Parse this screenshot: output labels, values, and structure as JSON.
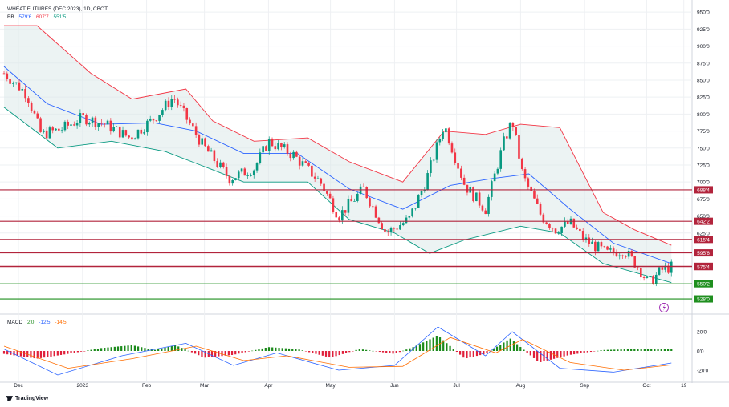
{
  "header": {
    "symbol_line": "WHEAT FUTURES (DEC 2023), 1D, CBOT",
    "bb_label": "BB",
    "bb_values": [
      "579'6",
      "607'7",
      "551'5"
    ],
    "macd_label": "MACD",
    "macd_values": [
      "2'0",
      "-12'5",
      "-14'5"
    ]
  },
  "footer": {
    "brand": "TradingView"
  },
  "colors": {
    "up": "#089981",
    "down": "#f23645",
    "bb_mid": "#2962ff",
    "bb_upper": "#f23645",
    "bb_lower": "#089981",
    "bb_fill": "#dce9e9",
    "hline_red": "#b2243c",
    "hline_green": "#1f8f1f",
    "macd_line": "#2962ff",
    "signal_line": "#ff6d00",
    "hist_pos": "#1b8a1b",
    "hist_neg": "#e0203b",
    "grid": "#eef0f3",
    "axis_text": "#131722",
    "badge_text": "#ffffff",
    "flash_icon": "#9c27b0"
  },
  "chart_data": [
    {
      "type": "line",
      "title": "WHEAT FUTURES (DEC 2023), 1D, CBOT",
      "subtype": "candlestick",
      "ylim": [
        508,
        962
      ],
      "y_ticks": [
        "950'0",
        "925'0",
        "900'0",
        "875'0",
        "850'0",
        "825'0",
        "800'0",
        "775'0",
        "750'0",
        "725'0",
        "700'0",
        "675'0",
        "650'0",
        "625'0"
      ],
      "y_tick_values": [
        950,
        925,
        900,
        875,
        850,
        825,
        800,
        775,
        750,
        725,
        700,
        675,
        650,
        625
      ],
      "x_labels": [
        "Dec",
        "2023",
        "Feb",
        "Mar",
        "Apr",
        "May",
        "Jun",
        "Jul",
        "Aug",
        "Sep",
        "Oct",
        "19"
      ],
      "x_label_dates": [
        "2022-12-01",
        "2023-01-01",
        "2023-02-01",
        "2023-03-01",
        "2023-04-01",
        "2023-05-01",
        "2023-06-01",
        "2023-07-01",
        "2023-08-01",
        "2023-09-01",
        "2023-10-01",
        "2023-10-19"
      ],
      "x_range": [
        "2022-11-24",
        "2023-10-23"
      ],
      "price_series": [
        {
          "date": "2022-11-24",
          "value": 860
        },
        {
          "date": "2022-12-05",
          "value": 830
        },
        {
          "date": "2022-12-12",
          "value": 770
        },
        {
          "date": "2022-12-22",
          "value": 778
        },
        {
          "date": "2023-01-01",
          "value": 795
        },
        {
          "date": "2023-01-12",
          "value": 785
        },
        {
          "date": "2023-01-24",
          "value": 765
        },
        {
          "date": "2023-02-05",
          "value": 795
        },
        {
          "date": "2023-02-14",
          "value": 825
        },
        {
          "date": "2023-02-28",
          "value": 755
        },
        {
          "date": "2023-03-13",
          "value": 705
        },
        {
          "date": "2023-03-25",
          "value": 720
        },
        {
          "date": "2023-04-01",
          "value": 760
        },
        {
          "date": "2023-04-13",
          "value": 740
        },
        {
          "date": "2023-04-26",
          "value": 700
        },
        {
          "date": "2023-05-05",
          "value": 650
        },
        {
          "date": "2023-05-17",
          "value": 690
        },
        {
          "date": "2023-05-28",
          "value": 625
        },
        {
          "date": "2023-06-08",
          "value": 645
        },
        {
          "date": "2023-06-16",
          "value": 700
        },
        {
          "date": "2023-06-25",
          "value": 785
        },
        {
          "date": "2023-07-05",
          "value": 695
        },
        {
          "date": "2023-07-15",
          "value": 660
        },
        {
          "date": "2023-07-24",
          "value": 760
        },
        {
          "date": "2023-07-28",
          "value": 790
        },
        {
          "date": "2023-08-02",
          "value": 710
        },
        {
          "date": "2023-08-11",
          "value": 650
        },
        {
          "date": "2023-08-18",
          "value": 630
        },
        {
          "date": "2023-08-25",
          "value": 640
        },
        {
          "date": "2023-09-01",
          "value": 615
        },
        {
          "date": "2023-09-12",
          "value": 595
        },
        {
          "date": "2023-09-20",
          "value": 600
        },
        {
          "date": "2023-09-27",
          "value": 575
        },
        {
          "date": "2023-10-02",
          "value": 550
        },
        {
          "date": "2023-10-08",
          "value": 570
        },
        {
          "date": "2023-10-13",
          "value": 575
        }
      ],
      "series": [
        {
          "name": "BB basis",
          "values": [
            {
              "date": "2022-11-24",
              "value": 870
            },
            {
              "date": "2022-12-15",
              "value": 815
            },
            {
              "date": "2023-01-10",
              "value": 785
            },
            {
              "date": "2023-02-05",
              "value": 787
            },
            {
              "date": "2023-02-25",
              "value": 775
            },
            {
              "date": "2023-03-20",
              "value": 742
            },
            {
              "date": "2023-04-15",
              "value": 742
            },
            {
              "date": "2023-05-10",
              "value": 690
            },
            {
              "date": "2023-06-05",
              "value": 660
            },
            {
              "date": "2023-06-28",
              "value": 695
            },
            {
              "date": "2023-07-18",
              "value": 705
            },
            {
              "date": "2023-08-05",
              "value": 712
            },
            {
              "date": "2023-08-25",
              "value": 660
            },
            {
              "date": "2023-09-15",
              "value": 610
            },
            {
              "date": "2023-10-13",
              "value": 580
            }
          ]
        },
        {
          "name": "BB upper",
          "values": [
            {
              "date": "2022-11-24",
              "value": 930
            },
            {
              "date": "2022-12-10",
              "value": 930
            },
            {
              "date": "2023-01-05",
              "value": 860
            },
            {
              "date": "2023-01-25",
              "value": 822
            },
            {
              "date": "2023-02-20",
              "value": 837
            },
            {
              "date": "2023-03-05",
              "value": 790
            },
            {
              "date": "2023-03-25",
              "value": 760
            },
            {
              "date": "2023-04-20",
              "value": 765
            },
            {
              "date": "2023-05-10",
              "value": 730
            },
            {
              "date": "2023-06-05",
              "value": 700
            },
            {
              "date": "2023-06-25",
              "value": 775
            },
            {
              "date": "2023-07-15",
              "value": 770
            },
            {
              "date": "2023-08-01",
              "value": 785
            },
            {
              "date": "2023-08-20",
              "value": 780
            },
            {
              "date": "2023-09-10",
              "value": 655
            },
            {
              "date": "2023-09-25",
              "value": 630
            },
            {
              "date": "2023-10-13",
              "value": 607
            }
          ]
        },
        {
          "name": "BB lower",
          "values": [
            {
              "date": "2022-11-24",
              "value": 810
            },
            {
              "date": "2022-12-20",
              "value": 750
            },
            {
              "date": "2023-01-15",
              "value": 760
            },
            {
              "date": "2023-02-10",
              "value": 745
            },
            {
              "date": "2023-03-05",
              "value": 718
            },
            {
              "date": "2023-03-20",
              "value": 700
            },
            {
              "date": "2023-04-20",
              "value": 700
            },
            {
              "date": "2023-05-10",
              "value": 645
            },
            {
              "date": "2023-06-01",
              "value": 625
            },
            {
              "date": "2023-06-18",
              "value": 595
            },
            {
              "date": "2023-07-05",
              "value": 615
            },
            {
              "date": "2023-08-01",
              "value": 635
            },
            {
              "date": "2023-08-20",
              "value": 625
            },
            {
              "date": "2023-09-10",
              "value": 580
            },
            {
              "date": "2023-10-13",
              "value": 552
            }
          ]
        }
      ],
      "horizontal_levels": [
        {
          "label": "688'4",
          "value": 688.5,
          "color": "red"
        },
        {
          "label": "642'2",
          "value": 642.25,
          "color": "red"
        },
        {
          "label": "615'4",
          "value": 615.5,
          "color": "red"
        },
        {
          "label": "595'6",
          "value": 595.75,
          "color": "red"
        },
        {
          "label": "576'0",
          "value": 576,
          "color": "red"
        },
        {
          "label": "575'4",
          "value": 575.5,
          "color": "red"
        },
        {
          "label": "550'2",
          "value": 550.25,
          "color": "green"
        },
        {
          "label": "528'0",
          "value": 528,
          "color": "green"
        }
      ]
    },
    {
      "type": "bar",
      "title": "MACD",
      "ylim": [
        -30,
        35
      ],
      "y_ticks": [
        "20'0",
        "0'0",
        "-20'0"
      ],
      "y_tick_values": [
        20,
        0,
        -20
      ],
      "histogram": [
        {
          "date": "2022-11-24",
          "value": -3
        },
        {
          "date": "2022-12-10",
          "value": -8
        },
        {
          "date": "2022-12-25",
          "value": -3
        },
        {
          "date": "2023-01-10",
          "value": 3
        },
        {
          "date": "2023-01-25",
          "value": 6
        },
        {
          "date": "2023-02-05",
          "value": 1
        },
        {
          "date": "2023-02-15",
          "value": 6
        },
        {
          "date": "2023-03-01",
          "value": -7
        },
        {
          "date": "2023-03-15",
          "value": -4
        },
        {
          "date": "2023-04-01",
          "value": 4
        },
        {
          "date": "2023-04-15",
          "value": 2
        },
        {
          "date": "2023-05-01",
          "value": -7
        },
        {
          "date": "2023-05-15",
          "value": 2
        },
        {
          "date": "2023-06-01",
          "value": -3
        },
        {
          "date": "2023-06-10",
          "value": 4
        },
        {
          "date": "2023-06-22",
          "value": 16
        },
        {
          "date": "2023-07-05",
          "value": -8
        },
        {
          "date": "2023-07-15",
          "value": -3
        },
        {
          "date": "2023-07-27",
          "value": 13
        },
        {
          "date": "2023-08-10",
          "value": -12
        },
        {
          "date": "2023-08-25",
          "value": -4
        },
        {
          "date": "2023-09-10",
          "value": 1
        },
        {
          "date": "2023-09-25",
          "value": 2
        },
        {
          "date": "2023-10-13",
          "value": 2
        }
      ],
      "series": [
        {
          "name": "MACD",
          "values": [
            {
              "date": "2022-11-24",
              "value": 2
            },
            {
              "date": "2022-12-20",
              "value": -25
            },
            {
              "date": "2023-01-20",
              "value": -5
            },
            {
              "date": "2023-02-20",
              "value": 8
            },
            {
              "date": "2023-03-15",
              "value": -15
            },
            {
              "date": "2023-04-05",
              "value": -2
            },
            {
              "date": "2023-05-05",
              "value": -20
            },
            {
              "date": "2023-06-01",
              "value": -15
            },
            {
              "date": "2023-06-22",
              "value": 25
            },
            {
              "date": "2023-07-15",
              "value": -5
            },
            {
              "date": "2023-07-28",
              "value": 20
            },
            {
              "date": "2023-08-20",
              "value": -18
            },
            {
              "date": "2023-09-15",
              "value": -22
            },
            {
              "date": "2023-10-13",
              "value": -12.5
            }
          ]
        },
        {
          "name": "Signal",
          "values": [
            {
              "date": "2022-11-24",
              "value": 5
            },
            {
              "date": "2022-12-25",
              "value": -18
            },
            {
              "date": "2023-01-25",
              "value": -8
            },
            {
              "date": "2023-02-25",
              "value": 5
            },
            {
              "date": "2023-03-20",
              "value": -10
            },
            {
              "date": "2023-04-10",
              "value": -5
            },
            {
              "date": "2023-05-10",
              "value": -17
            },
            {
              "date": "2023-06-05",
              "value": -16
            },
            {
              "date": "2023-06-28",
              "value": 14
            },
            {
              "date": "2023-07-20",
              "value": -2
            },
            {
              "date": "2023-08-02",
              "value": 12
            },
            {
              "date": "2023-08-25",
              "value": -12
            },
            {
              "date": "2023-09-20",
              "value": -20
            },
            {
              "date": "2023-10-13",
              "value": -14.5
            }
          ]
        }
      ]
    }
  ]
}
